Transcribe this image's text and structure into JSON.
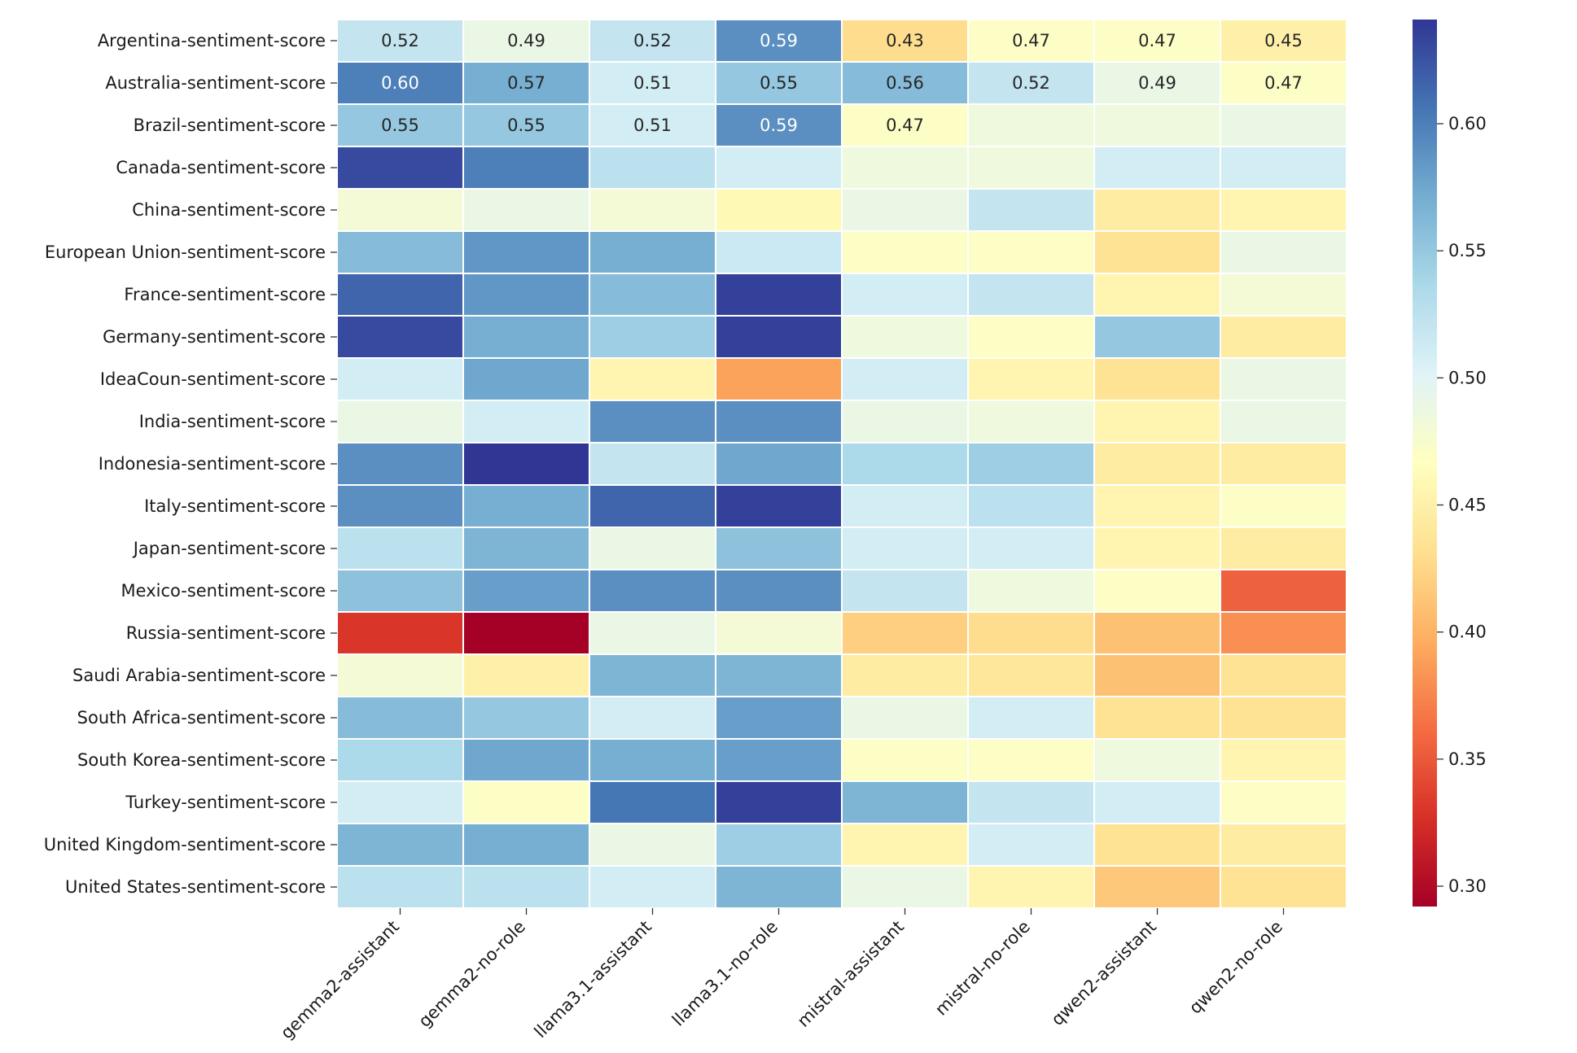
{
  "chart_data": {
    "type": "heatmap",
    "title": "",
    "xlabel": "",
    "ylabel": "",
    "colormap": "RdYlBu",
    "vmin": 0.292,
    "vmax": 0.641,
    "colorbar_ticks": [
      0.3,
      0.35,
      0.4,
      0.45,
      0.5,
      0.55,
      0.6
    ],
    "colorbar_tick_labels": [
      "0.30",
      "0.35",
      "0.40",
      "0.45",
      "0.50",
      "0.55",
      "0.60"
    ],
    "columns": [
      "gemma2-assistant",
      "gemma2-no-role",
      "llama3.1-assistant",
      "llama3.1-no-role",
      "mistral-assistant",
      "mistral-no-role",
      "qwen2-assistant",
      "qwen2-no-role"
    ],
    "rows": [
      "Argentina-sentiment-score",
      "Australia-sentiment-score",
      "Brazil-sentiment-score",
      "Canada-sentiment-score",
      "China-sentiment-score",
      "European Union-sentiment-score",
      "France-sentiment-score",
      "Germany-sentiment-score",
      "IdeaCoun-sentiment-score",
      "India-sentiment-score",
      "Indonesia-sentiment-score",
      "Italy-sentiment-score",
      "Japan-sentiment-score",
      "Mexico-sentiment-score",
      "Russia-sentiment-score",
      "Saudi Arabia-sentiment-score",
      "South Africa-sentiment-score",
      "South Korea-sentiment-score",
      "Turkey-sentiment-score",
      "United Kingdom-sentiment-score",
      "United States-sentiment-score"
    ],
    "values": [
      [
        0.52,
        0.49,
        0.52,
        0.59,
        0.43,
        0.47,
        0.47,
        0.45
      ],
      [
        0.6,
        0.57,
        0.51,
        0.55,
        0.56,
        0.52,
        0.49,
        0.47
      ],
      [
        0.55,
        0.55,
        0.51,
        0.59,
        0.47,
        0.485,
        0.485,
        0.49
      ],
      [
        0.63,
        0.6,
        0.525,
        0.51,
        0.485,
        0.485,
        0.51,
        0.51
      ],
      [
        0.48,
        0.49,
        0.48,
        0.46,
        0.49,
        0.52,
        0.445,
        0.455
      ],
      [
        0.56,
        0.585,
        0.57,
        0.515,
        0.47,
        0.47,
        0.435,
        0.49
      ],
      [
        0.615,
        0.585,
        0.56,
        0.635,
        0.51,
        0.52,
        0.455,
        0.48
      ],
      [
        0.63,
        0.57,
        0.545,
        0.635,
        0.485,
        0.47,
        0.55,
        0.445
      ],
      [
        0.51,
        0.575,
        0.455,
        0.39,
        0.51,
        0.455,
        0.435,
        0.49
      ],
      [
        0.49,
        0.51,
        0.59,
        0.59,
        0.49,
        0.485,
        0.455,
        0.49
      ],
      [
        0.59,
        0.641,
        0.52,
        0.575,
        0.535,
        0.545,
        0.445,
        0.445
      ],
      [
        0.59,
        0.57,
        0.615,
        0.635,
        0.51,
        0.525,
        0.455,
        0.47
      ],
      [
        0.525,
        0.565,
        0.49,
        0.555,
        0.51,
        0.51,
        0.455,
        0.445
      ],
      [
        0.555,
        0.58,
        0.59,
        0.59,
        0.52,
        0.485,
        0.47,
        0.355
      ],
      [
        0.33,
        0.292,
        0.49,
        0.48,
        0.42,
        0.43,
        0.41,
        0.38
      ],
      [
        0.48,
        0.45,
        0.565,
        0.565,
        0.445,
        0.44,
        0.41,
        0.435
      ],
      [
        0.56,
        0.55,
        0.51,
        0.58,
        0.49,
        0.51,
        0.435,
        0.435
      ],
      [
        0.535,
        0.575,
        0.57,
        0.58,
        0.47,
        0.47,
        0.485,
        0.455
      ],
      [
        0.51,
        0.47,
        0.605,
        0.635,
        0.565,
        0.52,
        0.51,
        0.47
      ],
      [
        0.565,
        0.57,
        0.49,
        0.545,
        0.455,
        0.51,
        0.435,
        0.445
      ],
      [
        0.525,
        0.525,
        0.51,
        0.565,
        0.49,
        0.455,
        0.415,
        0.435
      ]
    ],
    "annotations": [
      [
        0.52,
        0.49,
        0.52,
        0.59,
        0.43,
        0.47,
        0.47,
        0.45
      ],
      [
        0.6,
        0.57,
        0.51,
        0.55,
        0.56,
        0.52,
        0.49,
        0.47
      ],
      [
        0.55,
        0.55,
        0.51,
        0.59,
        0.47,
        null,
        null,
        null
      ]
    ]
  }
}
